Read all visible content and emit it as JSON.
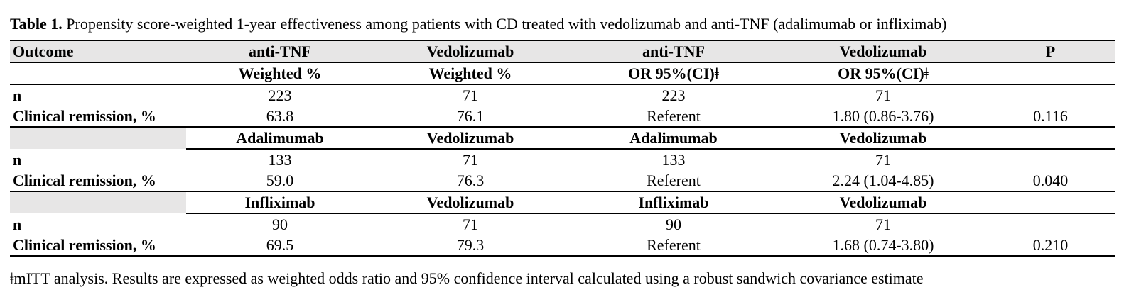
{
  "caption": {
    "label": "Table 1.",
    "text": " Propensity score-weighted 1-year effectiveness among patients with CD treated with vedolizumab and anti-TNF (adalimumab or infliximab)"
  },
  "header": [
    "Outcome",
    "anti-TNF",
    "Vedolizumab",
    "anti-TNF",
    "Vedolizumab",
    "P"
  ],
  "subheader": [
    "",
    "Weighted %",
    "Weighted %",
    "OR 95%(CI)ǂ",
    "OR 95%(CI)ǂ",
    ""
  ],
  "groups": [
    {
      "band": null,
      "rows": [
        [
          "n",
          "223",
          "71",
          "223",
          "71",
          ""
        ],
        [
          "Clinical remission, %",
          "63.8",
          "76.1",
          "Referent",
          "1.80 (0.86-3.76)",
          "0.116"
        ]
      ]
    },
    {
      "band": [
        "",
        "Adalimumab",
        "Vedolizumab",
        "Adalimumab",
        "Vedolizumab",
        ""
      ],
      "rows": [
        [
          "n",
          "133",
          "71",
          "133",
          "71",
          ""
        ],
        [
          "Clinical remission, %",
          "59.0",
          "76.3",
          "Referent",
          "2.24 (1.04-4.85)",
          "0.040"
        ]
      ]
    },
    {
      "band": [
        "",
        "Infliximab",
        "Vedolizumab",
        "Infliximab",
        "Vedolizumab",
        ""
      ],
      "rows": [
        [
          "n",
          "90",
          "71",
          "90",
          "71",
          ""
        ],
        [
          "Clinical remission, %",
          "69.5",
          "79.3",
          "Referent",
          "1.68 (0.74-3.80)",
          "0.210"
        ]
      ]
    }
  ],
  "footnote": "ǂmITT analysis. Results are expressed as weighted odds ratio and 95% confidence interval calculated using a robust sandwich covariance estimate"
}
